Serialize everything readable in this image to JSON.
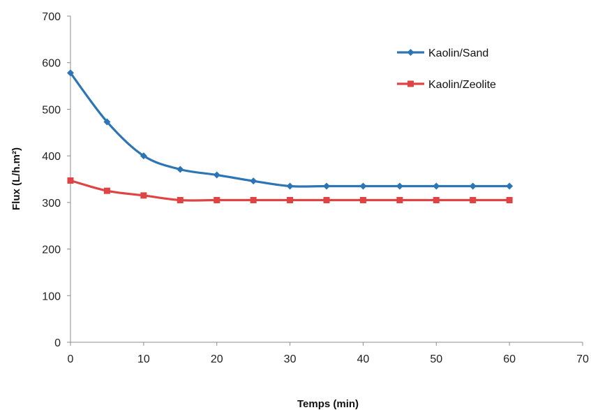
{
  "chart_data": {
    "type": "line",
    "title": "",
    "xlabel": "Temps (min)",
    "ylabel": "Flux (L/h.m²)",
    "xlim": [
      0,
      70
    ],
    "ylim": [
      0,
      700
    ],
    "x_ticks": [
      0,
      10,
      20,
      30,
      40,
      50,
      60,
      70
    ],
    "y_ticks": [
      0,
      100,
      200,
      300,
      400,
      500,
      600,
      700
    ],
    "grid": false,
    "legend_position": "top-right",
    "x": [
      0,
      5,
      10,
      15,
      20,
      25,
      30,
      35,
      40,
      45,
      50,
      55,
      60
    ],
    "series": [
      {
        "name": "Kaolin/Sand",
        "color": "#2E75B6",
        "marker": "diamond",
        "values": [
          578,
          473,
          400,
          371,
          359,
          346,
          335,
          335,
          335,
          335,
          335,
          335,
          335
        ]
      },
      {
        "name": "Kaolin/Zeolite",
        "color": "#E04343",
        "marker": "square",
        "values": [
          347,
          325,
          315,
          305,
          305,
          305,
          305,
          305,
          305,
          305,
          305,
          305,
          305
        ]
      }
    ]
  }
}
